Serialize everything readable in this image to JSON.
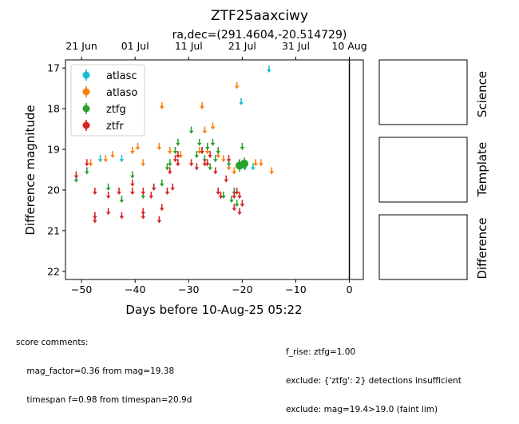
{
  "chart_data": {
    "type": "scatter",
    "title": "ZTF25aaxciwy",
    "subtitle": "ra,dec=(291.4604,-20.514729)",
    "xlabel": "Days before 10-Aug-25 05:22",
    "ylabel": "Difference magnitude",
    "xlim": [
      -53,
      2.6
    ],
    "ylim": [
      22.2,
      16.8
    ],
    "x_ticks": [
      -50,
      -40,
      -30,
      -20,
      -10,
      0
    ],
    "y_ticks": [
      17,
      18,
      19,
      20,
      21,
      22
    ],
    "top_ticks": [
      {
        "label": "21 Jun",
        "x": -50
      },
      {
        "label": "01 Jul",
        "x": -40
      },
      {
        "label": "11 Jul",
        "x": -30
      },
      {
        "label": "21 Jul",
        "x": -20
      },
      {
        "label": "31 Jul",
        "x": -10
      },
      {
        "label": "10 Aug",
        "x": 0
      }
    ],
    "vline_x": 0,
    "legend_position": "upper-left",
    "series": [
      {
        "name": "atlasc",
        "color": "#17becf",
        "limits": [
          [
            -46.5,
            19.2
          ],
          [
            -42.5,
            19.2
          ],
          [
            -20.2,
            17.8
          ],
          [
            -15,
            17.0
          ],
          [
            -19.5,
            19.4
          ],
          [
            -18,
            19.4
          ]
        ],
        "detections": []
      },
      {
        "name": "atlaso",
        "color": "#ff7f0e",
        "limits": [
          [
            -48.3,
            19.3
          ],
          [
            -45.5,
            19.2
          ],
          [
            -44.2,
            19.1
          ],
          [
            -40.5,
            19.0
          ],
          [
            -39.5,
            18.9
          ],
          [
            -38.5,
            19.3
          ],
          [
            -35.5,
            18.9
          ],
          [
            -35.0,
            17.9
          ],
          [
            -33.5,
            19.0
          ],
          [
            -31.5,
            19.1
          ],
          [
            -28.0,
            19.0
          ],
          [
            -27.5,
            17.9
          ],
          [
            -27.0,
            18.5
          ],
          [
            -26.5,
            19.0
          ],
          [
            -25.5,
            18.4
          ],
          [
            -24.5,
            19.1
          ],
          [
            -23.5,
            19.2
          ],
          [
            -22.5,
            19.4
          ],
          [
            -21.5,
            19.5
          ],
          [
            -21.0,
            17.4
          ],
          [
            -20.5,
            19.3
          ],
          [
            -17.5,
            19.3
          ],
          [
            -16.5,
            19.3
          ],
          [
            -14.5,
            19.5
          ]
        ],
        "detections": []
      },
      {
        "name": "ztfg",
        "color": "#2ca02c",
        "limits": [
          [
            -51.0,
            19.7
          ],
          [
            -49.0,
            19.5
          ],
          [
            -45.0,
            19.9
          ],
          [
            -42.5,
            20.2
          ],
          [
            -40.5,
            19.6
          ],
          [
            -38.5,
            20.1
          ],
          [
            -36.5,
            19.9
          ],
          [
            -35.0,
            19.8
          ],
          [
            -34.0,
            19.4
          ],
          [
            -33.5,
            19.3
          ],
          [
            -32.5,
            19.0
          ],
          [
            -32.0,
            18.8
          ],
          [
            -29.5,
            18.5
          ],
          [
            -28.5,
            19.1
          ],
          [
            -28.0,
            18.8
          ],
          [
            -27.5,
            19.0
          ],
          [
            -27.0,
            19.2
          ],
          [
            -26.5,
            18.9
          ],
          [
            -26.0,
            19.4
          ],
          [
            -25.5,
            18.8
          ],
          [
            -25.0,
            19.2
          ],
          [
            -24.5,
            19.0
          ],
          [
            -23.5,
            20.1
          ],
          [
            -22.5,
            19.3
          ],
          [
            -22.0,
            20.2
          ],
          [
            -21.5,
            20.0
          ],
          [
            -21.0,
            20.3
          ],
          [
            -20.0,
            18.9
          ]
        ],
        "detections": [
          {
            "x": -20.5,
            "y": 19.4,
            "err": 0.15
          },
          {
            "x": -19.6,
            "y": 19.35,
            "err": 0.15
          }
        ]
      },
      {
        "name": "ztfr",
        "color": "#d62728",
        "limits": [
          [
            -51.0,
            19.6
          ],
          [
            -49.0,
            19.3
          ],
          [
            -47.5,
            20.0
          ],
          [
            -47.5,
            20.6
          ],
          [
            -47.5,
            20.7
          ],
          [
            -45.0,
            20.1
          ],
          [
            -45.0,
            20.5
          ],
          [
            -43.0,
            20.0
          ],
          [
            -42.5,
            20.6
          ],
          [
            -40.5,
            19.8
          ],
          [
            -40.5,
            20.0
          ],
          [
            -38.5,
            20.0
          ],
          [
            -38.5,
            20.5
          ],
          [
            -38.5,
            20.6
          ],
          [
            -37.0,
            20.1
          ],
          [
            -36.5,
            19.9
          ],
          [
            -35.5,
            20.7
          ],
          [
            -35.0,
            20.4
          ],
          [
            -34.0,
            20.0
          ],
          [
            -33.5,
            19.5
          ],
          [
            -33.0,
            19.9
          ],
          [
            -32.5,
            19.2
          ],
          [
            -32.0,
            19.1
          ],
          [
            -32.0,
            19.3
          ],
          [
            -29.5,
            19.3
          ],
          [
            -28.5,
            19.4
          ],
          [
            -27.5,
            19.0
          ],
          [
            -27.0,
            19.3
          ],
          [
            -26.5,
            19.3
          ],
          [
            -26.0,
            19.1
          ],
          [
            -25.0,
            19.5
          ],
          [
            -24.5,
            20.0
          ],
          [
            -24.0,
            20.1
          ],
          [
            -23.0,
            19.7
          ],
          [
            -22.5,
            19.2
          ],
          [
            -21.5,
            20.1
          ],
          [
            -21.5,
            20.4
          ],
          [
            -21.0,
            20.0
          ],
          [
            -20.5,
            20.1
          ],
          [
            -20.0,
            20.3
          ],
          [
            -20.5,
            20.5
          ]
        ],
        "detections": []
      }
    ]
  },
  "panels": {
    "science": "Science",
    "template": "Template",
    "difference": "Difference"
  },
  "comments": {
    "left": [
      "score comments:",
      "    mag_factor=0.36 from mag=19.38",
      "    timespan f=0.98 from timespan=20.9d"
    ],
    "right": [
      "f_rise: ztfg=1.00",
      "exclude: {'ztfg': 2} detections insufficient",
      "exclude: mag=19.4>19.0 (faint lim)"
    ]
  }
}
